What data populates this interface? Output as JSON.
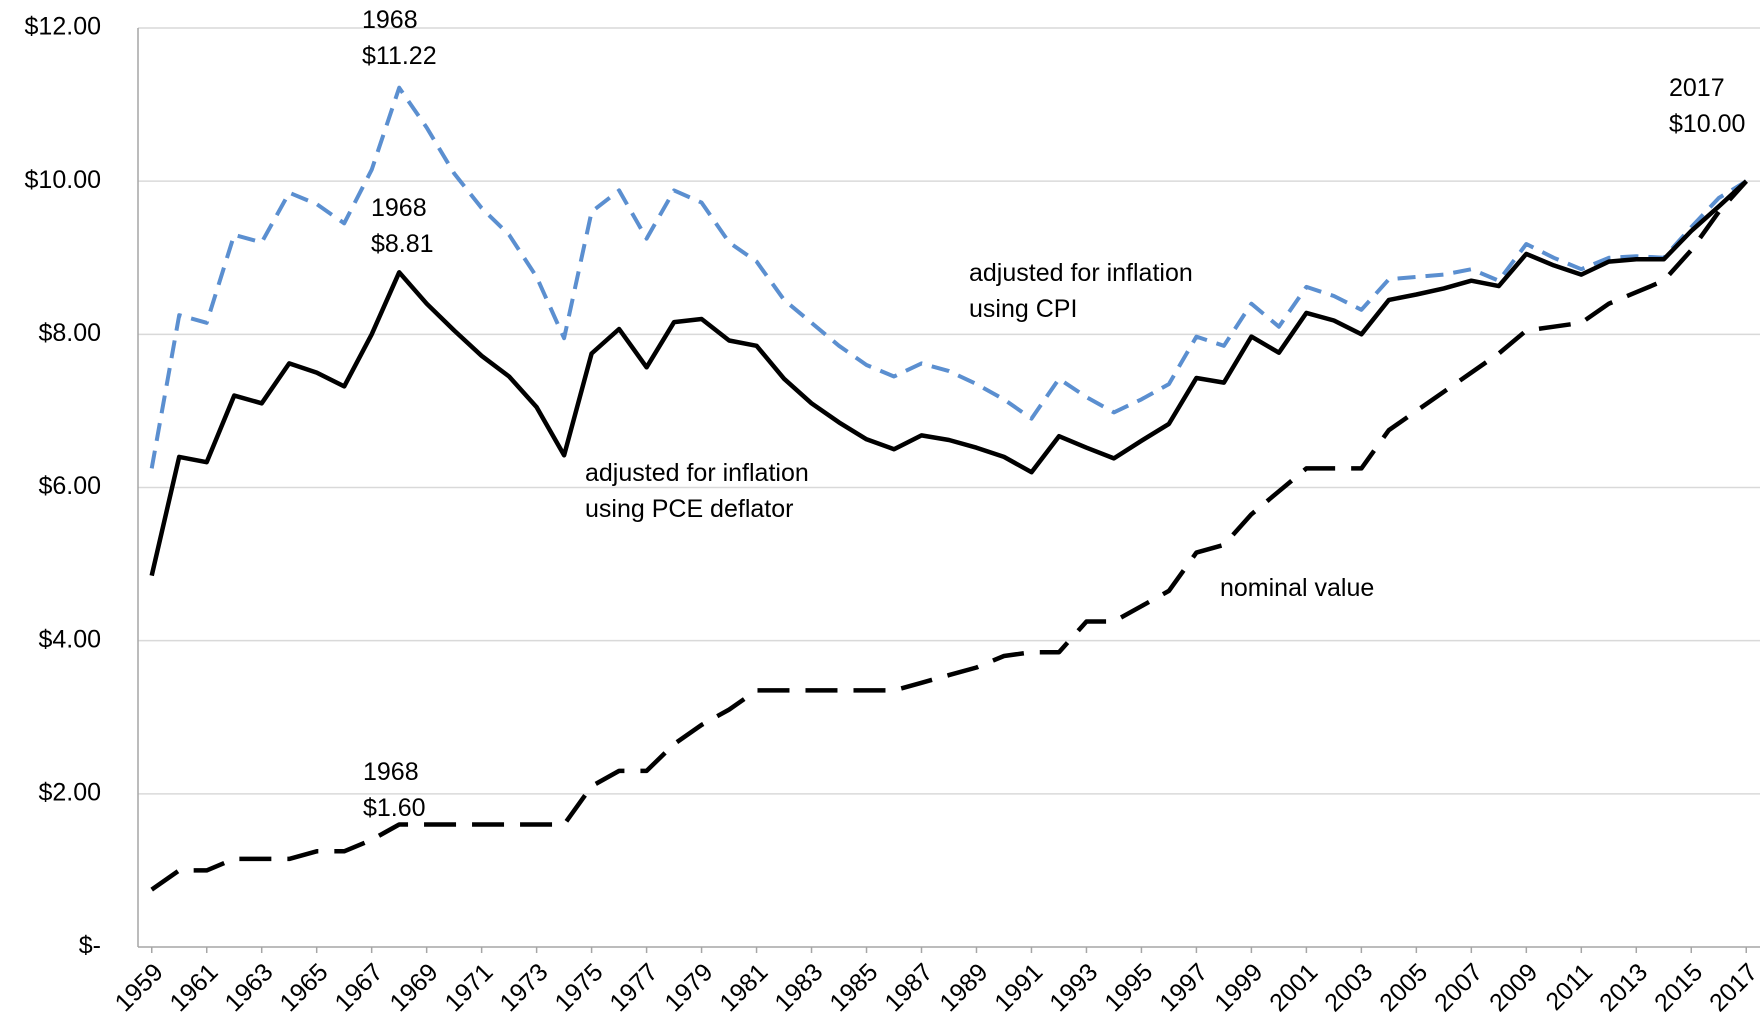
{
  "chart_data": {
    "type": "line",
    "x": [
      1959,
      1960,
      1961,
      1962,
      1963,
      1964,
      1965,
      1966,
      1967,
      1968,
      1969,
      1970,
      1971,
      1972,
      1973,
      1974,
      1975,
      1976,
      1977,
      1978,
      1979,
      1980,
      1981,
      1982,
      1983,
      1984,
      1985,
      1986,
      1987,
      1988,
      1989,
      1990,
      1991,
      1992,
      1993,
      1994,
      1995,
      1996,
      1997,
      1998,
      1999,
      2000,
      2001,
      2002,
      2003,
      2004,
      2005,
      2006,
      2007,
      2008,
      2009,
      2010,
      2011,
      2012,
      2013,
      2014,
      2015,
      2016,
      2017
    ],
    "xlim": [
      1958.5,
      2017.5
    ],
    "xticks": [
      1959,
      1961,
      1963,
      1965,
      1967,
      1969,
      1971,
      1973,
      1975,
      1977,
      1979,
      1981,
      1983,
      1985,
      1987,
      1989,
      1991,
      1993,
      1995,
      1997,
      1999,
      2001,
      2003,
      2005,
      2007,
      2009,
      2011,
      2013,
      2015,
      2017
    ],
    "ylim": [
      0,
      12
    ],
    "yticks": [
      {
        "value": 0,
        "label": "$-"
      },
      {
        "value": 2,
        "label": "$2.00"
      },
      {
        "value": 4,
        "label": "$4.00"
      },
      {
        "value": 6,
        "label": "$6.00"
      },
      {
        "value": 8,
        "label": "$8.00"
      },
      {
        "value": 10,
        "label": "$10.00"
      },
      {
        "value": 12,
        "label": "$12.00"
      }
    ],
    "grid": true,
    "series": [
      {
        "name": "adjusted for inflation using CPI",
        "color": "#5b8fd0",
        "style": "dashed",
        "values": [
          6.25,
          8.25,
          8.15,
          9.3,
          9.2,
          9.85,
          9.7,
          9.45,
          10.15,
          11.22,
          10.7,
          10.1,
          9.65,
          9.3,
          8.75,
          7.95,
          9.6,
          9.88,
          9.25,
          9.88,
          9.72,
          9.2,
          8.95,
          8.45,
          8.15,
          7.85,
          7.6,
          7.45,
          7.62,
          7.52,
          7.35,
          7.15,
          6.9,
          7.42,
          7.18,
          6.98,
          7.15,
          7.35,
          7.97,
          7.85,
          8.4,
          8.1,
          8.62,
          8.5,
          8.32,
          8.72,
          8.75,
          8.78,
          8.85,
          8.7,
          9.18,
          9.0,
          8.85,
          9.0,
          9.02,
          9.0,
          9.4,
          9.78,
          10.0
        ]
      },
      {
        "name": "adjusted for inflation using PCE deflator",
        "color": "#000000",
        "style": "solid",
        "values": [
          4.85,
          6.4,
          6.33,
          7.2,
          7.1,
          7.62,
          7.5,
          7.32,
          8.0,
          8.81,
          8.4,
          8.05,
          7.72,
          7.45,
          7.05,
          6.42,
          7.75,
          8.07,
          7.57,
          8.16,
          8.2,
          7.92,
          7.85,
          7.42,
          7.1,
          6.85,
          6.63,
          6.5,
          6.68,
          6.62,
          6.52,
          6.4,
          6.2,
          6.67,
          6.52,
          6.38,
          6.61,
          6.83,
          7.43,
          7.37,
          7.97,
          7.76,
          8.28,
          8.18,
          8.0,
          8.45,
          8.52,
          8.6,
          8.7,
          8.63,
          9.05,
          8.9,
          8.78,
          8.95,
          8.98,
          8.98,
          9.35,
          9.67,
          10.0
        ]
      },
      {
        "name": "nominal value",
        "color": "#000000",
        "style": "long-dashed",
        "values": [
          0.75,
          1.0,
          1.0,
          1.15,
          1.15,
          1.15,
          1.25,
          1.25,
          1.4,
          1.6,
          1.6,
          1.6,
          1.6,
          1.6,
          1.6,
          1.6,
          2.1,
          2.3,
          2.3,
          2.65,
          2.9,
          3.1,
          3.35,
          3.35,
          3.35,
          3.35,
          3.35,
          3.35,
          3.45,
          3.55,
          3.65,
          3.8,
          3.85,
          3.85,
          4.25,
          4.25,
          4.45,
          4.65,
          5.15,
          5.25,
          5.65,
          5.95,
          6.25,
          6.25,
          6.25,
          6.75,
          7.0,
          7.25,
          7.5,
          7.75,
          8.05,
          8.1,
          8.15,
          8.4,
          8.55,
          8.7,
          9.1,
          9.6,
          10.0
        ]
      }
    ],
    "annotations": [
      {
        "lines": [
          "1968",
          "$11.22"
        ]
      },
      {
        "lines": [
          "1968",
          "$8.81"
        ]
      },
      {
        "lines": [
          "2017",
          "$10.00"
        ]
      },
      {
        "lines": [
          "1968",
          "$1.60"
        ]
      }
    ]
  }
}
